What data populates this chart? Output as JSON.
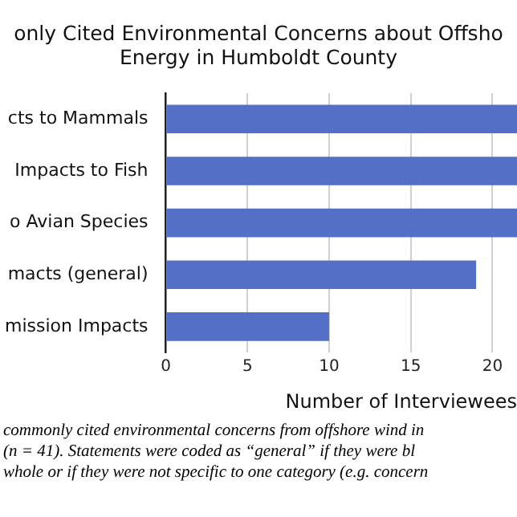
{
  "chart_data": {
    "type": "bar",
    "orientation": "horizontal",
    "title": [
      "only Cited Environmental Concerns about Offsho",
      "Energy in Humboldt County"
    ],
    "categories": [
      "cts to Mammals",
      "Impacts to Fish",
      "o Avian Species",
      "macts (general)",
      "mission Impacts"
    ],
    "values": [
      21.5,
      21.5,
      21.5,
      19,
      10
    ],
    "color": "#5470c6",
    "xlabel": "Number of Interviewees",
    "xlim": [
      0,
      21.5
    ],
    "xticks": [
      0,
      5,
      10,
      15,
      20
    ],
    "grid": "x",
    "annotations": [
      "commonly cited environmental concerns from offshore wind in",
      "(n = 41). Statements were coded as “general” if they were bl",
      "whole or if they were not specific to one category (e.g. concern"
    ]
  }
}
